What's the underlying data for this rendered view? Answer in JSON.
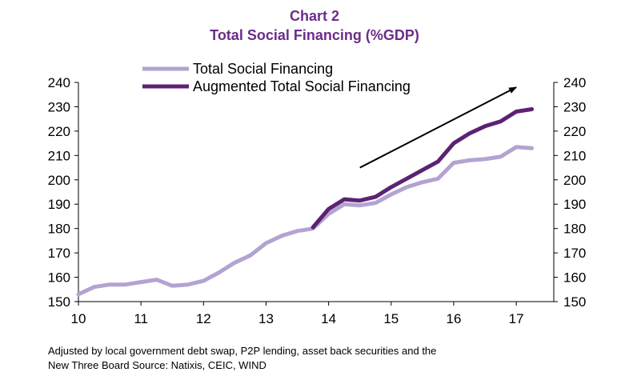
{
  "chart_data": {
    "type": "line",
    "title": "Chart 2",
    "subtitle": "Total Social Financing (%GDP)",
    "xlabel": "",
    "ylabel": "",
    "ylim": [
      150,
      240
    ],
    "xlim": [
      10,
      17.6
    ],
    "yticks": [
      150,
      160,
      170,
      180,
      190,
      200,
      210,
      220,
      230,
      240
    ],
    "xticks": [
      10,
      11,
      12,
      13,
      14,
      15,
      16,
      17
    ],
    "xtick_labels": [
      "10",
      "11",
      "12",
      "13",
      "14",
      "15",
      "16",
      "17"
    ],
    "legend_position": "top-left",
    "grid": false,
    "series": [
      {
        "name": "Total Social Financing",
        "color": "#b3a3d1",
        "x": [
          10.0,
          10.25,
          10.5,
          10.75,
          11.0,
          11.25,
          11.5,
          11.75,
          12.0,
          12.25,
          12.5,
          12.75,
          13.0,
          13.25,
          13.5,
          13.75,
          14.0,
          14.25,
          14.5,
          14.75,
          15.0,
          15.25,
          15.5,
          15.75,
          16.0,
          16.25,
          16.5,
          16.75,
          17.0,
          17.25
        ],
        "values": [
          153,
          156,
          157,
          157,
          158,
          159,
          156.5,
          157,
          158.5,
          162,
          166,
          169,
          174,
          177,
          179,
          180,
          186,
          190,
          189.5,
          190.5,
          194,
          197,
          199,
          200.5,
          207,
          208,
          208.5,
          209.5,
          213.5,
          213
        ]
      },
      {
        "name": "Augmented Total Social Financing",
        "color": "#5b2274",
        "x": [
          13.75,
          14.0,
          14.25,
          14.5,
          14.75,
          15.0,
          15.25,
          15.5,
          15.75,
          16.0,
          16.25,
          16.5,
          16.75,
          17.0,
          17.25
        ],
        "values": [
          180.5,
          188,
          192,
          191.5,
          193,
          197,
          200.5,
          204,
          207.5,
          215,
          219,
          222,
          224,
          228,
          229
        ]
      }
    ],
    "annotations": [
      {
        "type": "arrow",
        "from": [
          14.5,
          205
        ],
        "to": [
          17.0,
          238
        ],
        "color": "#000000"
      }
    ]
  },
  "footnote": {
    "line1": "Adjusted by local government debt swap, P2P lending, asset back securities and the",
    "line2": "New Three Board  Source: Natixis, CEIC, WIND"
  }
}
